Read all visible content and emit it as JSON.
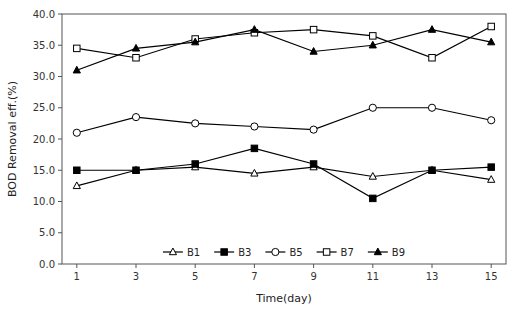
{
  "chart_data": {
    "type": "line",
    "x_label": "Time(day)",
    "y_label": "BOD Removal eff.(%)",
    "x": [
      1,
      3,
      5,
      7,
      9,
      11,
      13,
      15
    ],
    "xlim": [
      0.5,
      15.5
    ],
    "xticks": [
      1,
      3,
      5,
      7,
      9,
      11,
      13,
      15
    ],
    "ylim": [
      0.0,
      40.0
    ],
    "yticks": [
      {
        "value": 0.0,
        "label": "0.0"
      },
      {
        "value": 5.0,
        "label": "5.0"
      },
      {
        "value": 10.0,
        "label": "10.0"
      },
      {
        "value": 15.0,
        "label": "15.0"
      },
      {
        "value": 20.0,
        "label": "20.0"
      },
      {
        "value": 25.0,
        "label": "25.0"
      },
      {
        "value": 30.0,
        "label": "30.0"
      },
      {
        "value": 35.0,
        "label": "35.0"
      },
      {
        "value": 40.0,
        "label": "40.0"
      }
    ],
    "grid": false,
    "legend": "bottom",
    "series": [
      {
        "name": "B1",
        "color": "black",
        "marker": "triangle-open",
        "line_style": "solid",
        "values": [
          12.5,
          15.0,
          15.5,
          14.5,
          15.5,
          14.0,
          15.0,
          13.5
        ]
      },
      {
        "name": "B3",
        "color": "black",
        "marker": "square",
        "line_style": "solid",
        "values": [
          15.0,
          15.0,
          16.0,
          18.5,
          16.0,
          10.5,
          15.0,
          15.5
        ]
      },
      {
        "name": "B5",
        "color": "black",
        "marker": "circle-open",
        "line_style": "solid",
        "values": [
          21.0,
          23.5,
          22.5,
          22.0,
          21.5,
          25.0,
          25.0,
          23.0
        ]
      },
      {
        "name": "B7",
        "color": "black",
        "marker": "square-open",
        "line_style": "solid",
        "values": [
          34.5,
          33.0,
          36.0,
          37.0,
          37.5,
          36.5,
          33.0,
          38.0
        ]
      },
      {
        "name": "B9",
        "color": "black",
        "marker": "triangle",
        "line_style": "solid",
        "values": [
          31.0,
          34.5,
          35.5,
          37.5,
          34.0,
          35.0,
          37.5,
          35.5
        ]
      }
    ]
  }
}
